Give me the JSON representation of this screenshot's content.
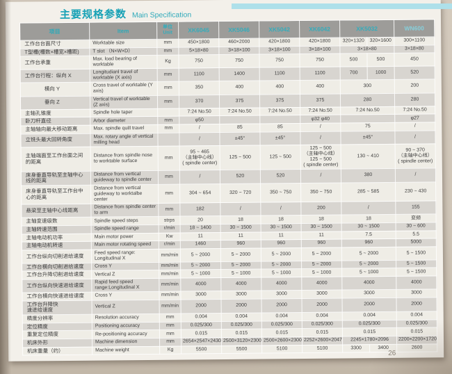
{
  "page": {
    "title_zh": "主要规格参数",
    "title_en": "Main Specification",
    "page_number": "26"
  },
  "table": {
    "headers": {
      "item_zh": "项目",
      "item_en": "Item",
      "unit_zh": "单位",
      "unit_en": "Unit",
      "models": [
        "XK6045",
        "XK5046",
        "XK5042",
        "XK6042",
        "XK5032",
        "WN600"
      ]
    },
    "rows": [
      {
        "zh": "工作台台面尺寸",
        "en": "Worktable size",
        "unit": "mm",
        "values": [
          "450×1800",
          "460×2000",
          "420×1800",
          "420×1800",
          [
            "320×1320",
            "320×1600"
          ],
          "300×1100"
        ]
      },
      {
        "zh": "T型槽(槽数×槽宽×槽距)",
        "en": "T slot （N×W×D）",
        "unit": "mm",
        "values": [
          "5×18×80",
          "3×18×100",
          "3×18×100",
          "3×18×100",
          "3×18×80",
          "3×18×80"
        ]
      },
      {
        "zh": "工作台承重",
        "en": "Max. load bearing of worktable",
        "unit": "Kg",
        "values": [
          "750",
          "750",
          "750",
          "750",
          [
            "500",
            "500"
          ],
          "450"
        ]
      },
      {
        "zh": "工作台行程：纵向 X",
        "en": "Longitudianl travel of worktable (X axis)",
        "unit": "mm",
        "values": [
          "1100",
          "1400",
          "1100",
          "1100",
          [
            "700",
            "1000"
          ],
          "520"
        ]
      },
      {
        "zh": "横向 Y",
        "indent": true,
        "en": "Cross travel of worktable (Y axis)",
        "unit": "mm",
        "values": [
          "350",
          "400",
          "400",
          "400",
          "300",
          "200"
        ]
      },
      {
        "zh": "垂向 Z",
        "indent": true,
        "en": "Vertical travel of worktable (Z axis)",
        "unit": "mm",
        "values": [
          "370",
          "375",
          "375",
          "375",
          "280",
          "280"
        ]
      },
      {
        "zh": "主轴孔锥度",
        "en": "Spindle hole taper",
        "unit": "",
        "values": [
          "7:24 No.50",
          "7:24 No.50",
          "7:24 No.50",
          "7:24 No.50",
          "7:24 No.50",
          "7:24 No.50"
        ]
      },
      {
        "zh": "卧刀杆直径",
        "en": "Arbor diameter",
        "unit": "mm",
        "values": [
          "φ50",
          "",
          "",
          "φ32 φ40",
          "",
          "φ27"
        ]
      },
      {
        "zh": "主轴轴向最大移动距离",
        "en": "Max. spindle quill travel",
        "unit": "mm",
        "values": [
          "/",
          "85",
          "85",
          "/",
          "75",
          "/"
        ]
      },
      {
        "zh": "立铣头最大回转角度",
        "en": "Max. rotary angle of vertical milling head",
        "unit": "",
        "values": [
          "/",
          "±45°",
          "±45°",
          "/",
          "±45°",
          "/"
        ]
      },
      {
        "zh": "主轴端面至工作台面之间\n的距离",
        "en": "Distance from spindle nose to worktable surface",
        "unit": "mm",
        "values": [
          "95 ~ 465\n（主轴中心线）\n( spindle center)",
          "125 ~ 500",
          "125 ~ 500",
          "125 ~ 500\n（主轴中心线）\n125 ~ 500\n( spindle center)",
          "130 ~ 410",
          "90 ~ 370\n（主轴中心线）\n( spindle center)"
        ]
      },
      {
        "zh": "床身垂直导轨至主轴中心\n线的距离",
        "en": "Distance from vertical guideway to spindle center",
        "unit": "mm",
        "values": [
          "/",
          "520",
          "520",
          "/",
          "380",
          "/"
        ]
      },
      {
        "zh": "床身垂直导轨至工作台中\n心的距离",
        "en": "Distance from vertical guideway to worktalbe center",
        "unit": "mm",
        "values": [
          "304 ~ 654",
          "320 ~ 720",
          "350 ~ 750",
          "350 ~ 750",
          "285 ~ 585",
          "230 ~ 430"
        ]
      },
      {
        "zh": "悬梁至主轴中心线距离",
        "en": "Distance from spindle center to arm",
        "unit": "mm",
        "values": [
          "182",
          "/",
          "/",
          "200",
          "/",
          "155"
        ]
      },
      {
        "zh": "主轴变速级数",
        "en": "Spindle speed steps",
        "unit": "strps",
        "values": [
          "20",
          "18",
          "18",
          "18",
          "18",
          "变频"
        ]
      },
      {
        "zh": "主轴转速范围",
        "en": "Spindle speed range",
        "unit": "r/min",
        "values": [
          "18 ~ 1400",
          "30 ~ 1500",
          "30 ~ 1500",
          "30 ~ 1500",
          "30 ~ 1500",
          "30 ~ 600"
        ]
      },
      {
        "zh": "主轴电动机功率",
        "en": "Main motor power",
        "unit": "Kw",
        "values": [
          "11",
          "11",
          "11",
          "11",
          "7.5",
          "5.5"
        ]
      },
      {
        "zh": "主轴电动机转速",
        "en": "Main motor rotating speed",
        "unit": "r/min",
        "values": [
          "1460",
          "960",
          "960",
          "960",
          "960",
          "5000"
        ]
      },
      {
        "zh": "工作台纵向切削进给速度",
        "en": "Feed speed range: Longitudinal X",
        "unit": "mm/min",
        "values": [
          "5 ~ 2000",
          "5 ~ 2000",
          "5 ~ 2000",
          "5 ~ 2000",
          "5 ~ 2000",
          "5 ~ 1500"
        ]
      },
      {
        "zh": "工作台横向切削进给速度",
        "en": "Cross Y",
        "unit": "mm/min",
        "values": [
          "5 ~ 2000",
          "5 ~ 2000",
          "5 ~ 2000",
          "5 ~ 2000",
          "5 ~ 2000",
          "5 ~ 1500"
        ]
      },
      {
        "zh": "工作台升降切削进给速度",
        "en": "Vertical Z",
        "unit": "mm/min",
        "values": [
          "5 ~ 1000",
          "5 ~ 1000",
          "5 ~ 1000",
          "5 ~ 1000",
          "5 ~ 1000",
          "5 ~ 1500"
        ]
      },
      {
        "zh": "工作台纵向快速进给速度",
        "en": "Rapid feed speed range:Longitudinal X",
        "unit": "mm/min",
        "values": [
          "4000",
          "4000",
          "4000",
          "4000",
          "4000",
          "4000"
        ]
      },
      {
        "zh": "工作台横向快速进给速度",
        "en": "Cross Y",
        "unit": "mm/min",
        "values": [
          "3000",
          "3000",
          "3000",
          "3000",
          "3000",
          "3000"
        ]
      },
      {
        "zh": "工作台升降快\n速进给速度",
        "en": "Vertical Z",
        "unit": "mm/min",
        "values": [
          "2000",
          "2000",
          "2000",
          "2000",
          "2000",
          "2000"
        ]
      },
      {
        "zh": "精度分辨率",
        "en": "Resolution accuracy",
        "unit": "mm",
        "values": [
          "0.004",
          "0.004",
          "0.004",
          "0.004",
          "0.004",
          "0.004"
        ]
      },
      {
        "zh": "定位精度",
        "en": "Positioning accuracy",
        "unit": "mm",
        "values": [
          "0.025/300",
          "0.025/300",
          "0.025/300",
          "0.025/300",
          "0.025/300",
          "0.025/300"
        ]
      },
      {
        "zh": "重复定位精度",
        "en": "Re-positioning accuracy",
        "unit": "mm",
        "values": [
          "0.015",
          "0.015",
          "0.015",
          "0.015",
          "0.015",
          "0.015"
        ]
      },
      {
        "zh": "机床外形",
        "en": "Machine dimension",
        "unit": "mm",
        "values": [
          "2654×2547×2430",
          "2500×3120×2300",
          "2500×2600×2300",
          "2252×2600×2047",
          "2245×1780×2096",
          "2200×2200×1720"
        ]
      },
      {
        "zh": "机床重量（约）",
        "en": "Machine weight",
        "unit": "Kg",
        "values": [
          "5500",
          "5500",
          "5100",
          "5100",
          [
            "3300",
            "3400"
          ],
          "2600"
        ]
      }
    ]
  }
}
